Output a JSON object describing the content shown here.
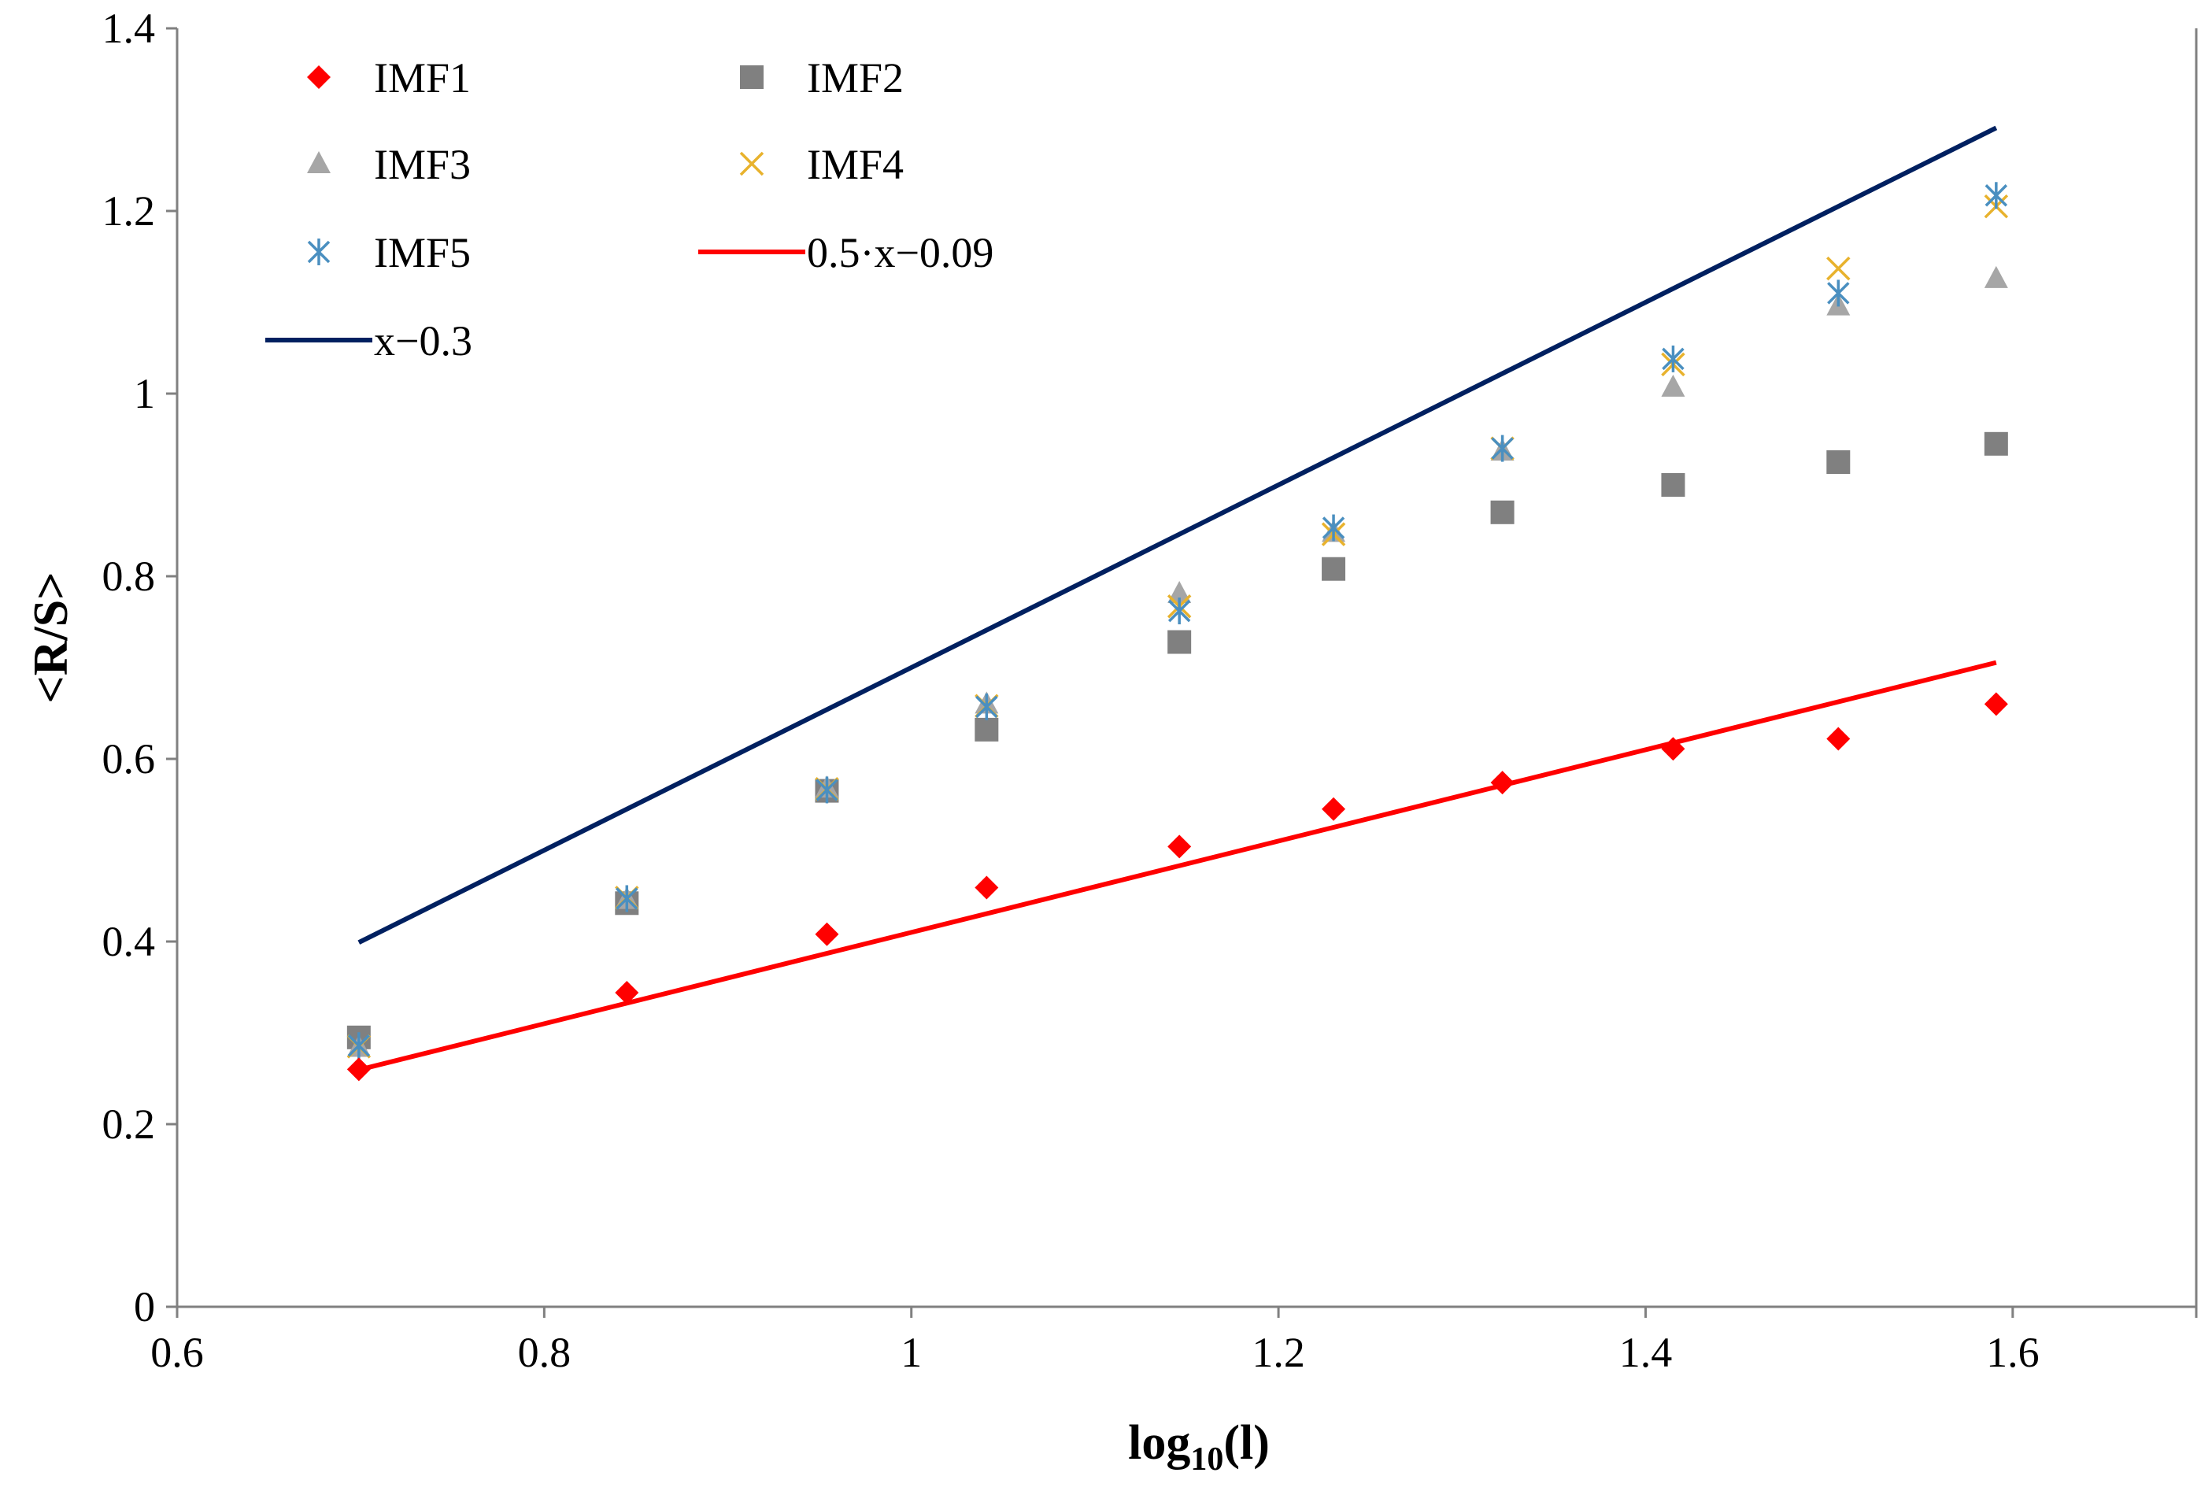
{
  "chart_data": {
    "type": "scatter",
    "title": "",
    "xlabel": "log",
    "xlabel_subscript": "10",
    "xlabel_suffix": "(l)",
    "ylabel": "<R/S>",
    "xlim": [
      0.6,
      1.7
    ],
    "ylim": [
      0,
      1.4
    ],
    "x_ticks": [
      0.6,
      0.8,
      1.0,
      1.2,
      1.4,
      1.6
    ],
    "x_tick_labels": [
      "0.6",
      "0.8",
      "1",
      "1.2",
      "1.4",
      "1.6"
    ],
    "y_ticks": [
      0,
      0.2,
      0.4,
      0.6,
      0.8,
      1.0,
      1.2,
      1.4
    ],
    "y_tick_labels": [
      "0",
      "0.2",
      "0.4",
      "0.6",
      "0.8",
      "1",
      "1.2",
      "1.4"
    ],
    "grid": false,
    "legend_position": "top-left",
    "x": [
      0.699,
      0.845,
      0.954,
      1.041,
      1.146,
      1.23,
      1.322,
      1.415,
      1.505,
      1.591
    ],
    "series": [
      {
        "name": "IMF1",
        "marker": "diamond",
        "color": "#ff0000",
        "values": [
          0.26,
          0.344,
          0.408,
          0.459,
          0.504,
          0.545,
          0.574,
          0.611,
          0.622,
          0.66
        ]
      },
      {
        "name": "IMF2",
        "marker": "square",
        "color": "#808080",
        "values": [
          0.295,
          0.442,
          0.565,
          0.632,
          0.728,
          0.808,
          0.87,
          0.9,
          0.925,
          0.945
        ]
      },
      {
        "name": "IMF3",
        "marker": "triangle",
        "color": "#a6a6a6",
        "values": [
          0.284,
          0.446,
          0.568,
          0.66,
          0.781,
          0.848,
          0.937,
          1.007,
          1.096,
          1.126
        ]
      },
      {
        "name": "IMF4",
        "marker": "x",
        "color": "#e8b22d",
        "values": [
          0.285,
          0.448,
          0.567,
          0.658,
          0.767,
          0.846,
          0.94,
          1.032,
          1.137,
          1.205
        ]
      },
      {
        "name": "IMF5",
        "marker": "star",
        "color": "#4a8fc0",
        "values": [
          0.286,
          0.447,
          0.566,
          0.657,
          0.762,
          0.853,
          0.94,
          1.038,
          1.11,
          1.217
        ]
      }
    ],
    "lines": [
      {
        "name": "0.5·x−0.09",
        "color": "#ff0000",
        "slope": 0.5,
        "intercept": -0.09,
        "x_range": [
          0.699,
          1.591
        ]
      },
      {
        "name": "x−0.3",
        "color": "#002060",
        "slope": 1.0,
        "intercept": -0.3,
        "x_range": [
          0.699,
          1.591
        ]
      }
    ],
    "legend": [
      {
        "label": "IMF1",
        "key": "IMF1",
        "type": "marker"
      },
      {
        "label": "IMF2",
        "key": "IMF2",
        "type": "marker"
      },
      {
        "label": "IMF3",
        "key": "IMF3",
        "type": "marker"
      },
      {
        "label": "IMF4",
        "key": "IMF4",
        "type": "marker"
      },
      {
        "label": "IMF5",
        "key": "IMF5",
        "type": "marker"
      },
      {
        "label": "0.5·x−0.09",
        "key": "0.5·x−0.09",
        "type": "line"
      },
      {
        "label": "x−0.3",
        "key": "x−0.3",
        "type": "line"
      }
    ]
  }
}
